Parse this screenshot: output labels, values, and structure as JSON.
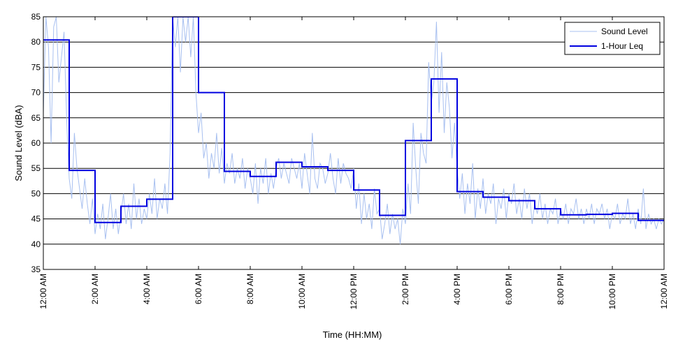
{
  "chart_data": {
    "type": "line",
    "title": "",
    "xlabel": "Time (HH:MM)",
    "ylabel": "Sound Level (dBA)",
    "xlim": [
      0,
      24
    ],
    "ylim": [
      35,
      85
    ],
    "yticks": [
      35,
      40,
      45,
      50,
      55,
      60,
      65,
      70,
      75,
      80,
      85
    ],
    "xticks": [
      0,
      2,
      4,
      6,
      8,
      10,
      12,
      14,
      16,
      18,
      20,
      22,
      24
    ],
    "xtick_labels": [
      "12:00 AM",
      "2:00 AM",
      "4:00 AM",
      "6:00 AM",
      "8:00 AM",
      "10:00 AM",
      "12:00 PM",
      "2:00 PM",
      "4:00 PM",
      "6:00 PM",
      "8:00 PM",
      "10:00 PM",
      "12:00 AM"
    ],
    "grid": "horizontal",
    "legend_position": "top-right",
    "colors": {
      "sound_level": "#a8c0f0",
      "leq": "#0000e0"
    },
    "series": [
      {
        "name": "Sound Level",
        "x": [
          0,
          0.1,
          0.2,
          0.3,
          0.4,
          0.5,
          0.6,
          0.7,
          0.8,
          0.9,
          1.0,
          1.1,
          1.2,
          1.3,
          1.4,
          1.5,
          1.6,
          1.7,
          1.8,
          1.9,
          2.0,
          2.1,
          2.2,
          2.3,
          2.4,
          2.5,
          2.6,
          2.7,
          2.8,
          2.9,
          3.0,
          3.1,
          3.2,
          3.3,
          3.4,
          3.5,
          3.6,
          3.7,
          3.8,
          3.9,
          4.0,
          4.1,
          4.2,
          4.3,
          4.4,
          4.5,
          4.6,
          4.7,
          4.8,
          4.9,
          5.0,
          5.1,
          5.2,
          5.3,
          5.4,
          5.5,
          5.6,
          5.7,
          5.8,
          5.9,
          6.0,
          6.1,
          6.2,
          6.3,
          6.4,
          6.5,
          6.6,
          6.7,
          6.8,
          6.9,
          7.0,
          7.1,
          7.2,
          7.3,
          7.4,
          7.5,
          7.6,
          7.7,
          7.8,
          7.9,
          8.0,
          8.1,
          8.2,
          8.3,
          8.4,
          8.5,
          8.6,
          8.7,
          8.8,
          8.9,
          9.0,
          9.1,
          9.2,
          9.3,
          9.4,
          9.5,
          9.6,
          9.7,
          9.8,
          9.9,
          10.0,
          10.1,
          10.2,
          10.3,
          10.4,
          10.5,
          10.6,
          10.7,
          10.8,
          10.9,
          11.0,
          11.1,
          11.2,
          11.3,
          11.4,
          11.5,
          11.6,
          11.7,
          11.8,
          11.9,
          12.0,
          12.1,
          12.2,
          12.3,
          12.4,
          12.5,
          12.6,
          12.7,
          12.8,
          12.9,
          13.0,
          13.1,
          13.2,
          13.3,
          13.4,
          13.5,
          13.6,
          13.7,
          13.8,
          13.9,
          14.0,
          14.1,
          14.2,
          14.3,
          14.4,
          14.5,
          14.6,
          14.7,
          14.8,
          14.9,
          15.0,
          15.1,
          15.2,
          15.3,
          15.4,
          15.5,
          15.6,
          15.7,
          15.8,
          15.9,
          16.0,
          16.1,
          16.2,
          16.3,
          16.4,
          16.5,
          16.6,
          16.7,
          16.8,
          16.9,
          17.0,
          17.1,
          17.2,
          17.3,
          17.4,
          17.5,
          17.6,
          17.7,
          17.8,
          17.9,
          18.0,
          18.1,
          18.2,
          18.3,
          18.4,
          18.5,
          18.6,
          18.7,
          18.8,
          18.9,
          19.0,
          19.1,
          19.2,
          19.3,
          19.4,
          19.5,
          19.6,
          19.7,
          19.8,
          19.9,
          20.0,
          20.1,
          20.2,
          20.3,
          20.4,
          20.5,
          20.6,
          20.7,
          20.8,
          20.9,
          21.0,
          21.1,
          21.2,
          21.3,
          21.4,
          21.5,
          21.6,
          21.7,
          21.8,
          21.9,
          22.0,
          22.1,
          22.2,
          22.3,
          22.4,
          22.5,
          22.6,
          22.7,
          22.8,
          22.9,
          23.0,
          23.1,
          23.2,
          23.3,
          23.4,
          23.5,
          23.6,
          23.7,
          23.8,
          23.9,
          24.0
        ],
        "y": [
          66,
          85,
          79,
          60,
          83,
          85,
          72,
          77,
          82,
          65,
          53,
          49,
          62,
          55,
          51,
          47,
          53,
          48,
          44,
          49,
          42,
          46,
          43,
          48,
          41,
          45,
          50,
          43,
          47,
          42,
          46,
          50,
          44,
          48,
          43,
          52,
          45,
          49,
          44,
          47,
          45,
          50,
          46,
          53,
          45,
          49,
          47,
          52,
          46,
          58,
          85,
          79,
          85,
          74,
          85,
          80,
          85,
          77,
          85,
          70,
          62,
          66,
          57,
          60,
          53,
          58,
          55,
          62,
          54,
          59,
          52,
          56,
          54,
          58,
          52,
          55,
          53,
          57,
          51,
          55,
          53,
          50,
          56,
          48,
          55,
          52,
          57,
          50,
          54,
          51,
          55,
          57,
          53,
          56,
          54,
          52,
          57,
          55,
          53,
          56,
          51,
          58,
          54,
          50,
          62,
          53,
          51,
          56,
          55,
          52,
          54,
          58,
          53,
          50,
          57,
          52,
          56,
          54,
          53,
          51,
          55,
          47,
          52,
          44,
          50,
          45,
          48,
          43,
          51,
          46,
          47,
          41,
          44,
          48,
          42,
          46,
          43,
          45,
          40,
          47,
          44,
          52,
          46,
          64,
          55,
          48,
          62,
          58,
          56,
          76,
          68,
          72,
          84,
          66,
          78,
          62,
          72,
          67,
          57,
          64,
          55,
          49,
          54,
          46,
          52,
          48,
          56,
          45,
          51,
          47,
          53,
          46,
          50,
          48,
          52,
          44,
          49,
          47,
          51,
          45,
          50,
          48,
          52,
          46,
          49,
          45,
          51,
          47,
          50,
          44,
          48,
          46,
          50,
          45,
          48,
          44,
          47,
          46,
          49,
          44,
          47,
          45,
          48,
          44,
          47,
          46,
          49,
          45,
          47,
          44,
          47,
          45,
          48,
          44,
          47,
          46,
          48,
          45,
          47,
          43,
          46,
          45,
          48,
          44,
          46,
          45,
          49,
          44,
          46,
          43,
          47,
          44,
          51,
          43,
          46,
          44,
          45,
          43,
          45,
          44,
          45
        ]
      },
      {
        "name": "1-Hour Leq",
        "step": "post",
        "x": [
          0,
          1,
          2,
          3,
          4,
          5,
          6,
          7,
          8,
          9,
          10,
          11,
          12,
          13,
          14,
          15,
          16,
          17,
          18,
          19,
          20,
          21,
          22,
          23,
          24
        ],
        "y": [
          80.4,
          54.6,
          44.3,
          47.5,
          48.9,
          85.0,
          70.0,
          54.4,
          53.4,
          56.2,
          55.3,
          54.6,
          50.7,
          45.7,
          60.5,
          72.7,
          50.4,
          49.3,
          48.6,
          47.0,
          45.8,
          45.9,
          46.1,
          44.7,
          44.7
        ]
      }
    ]
  }
}
